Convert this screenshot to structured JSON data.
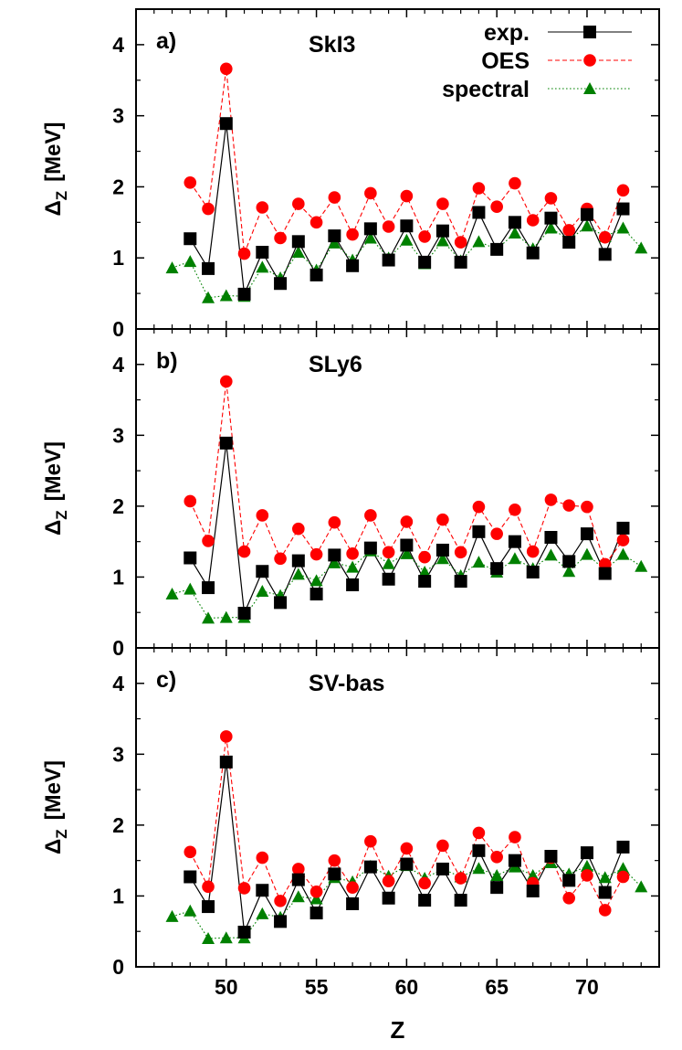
{
  "figure": {
    "xlabel": "Z",
    "ylabel_main": "Δ",
    "ylabel_sub": "Z",
    "ylabel_unit": "[MeV]",
    "legend": {
      "exp": "exp.",
      "oes": "OES",
      "spectral": "spectral"
    }
  },
  "colors": {
    "exp": "#000000",
    "oes": "#ff0000",
    "spectral": "#008000"
  },
  "chart_data": [
    {
      "type": "line",
      "panel_label": "a)",
      "title": "SkI3",
      "xlabel": "Z",
      "ylabel": "ΔZ [MeV]",
      "xlim": [
        45,
        74
      ],
      "ylim": [
        0,
        4.5
      ],
      "xticks": [
        50,
        55,
        60,
        65,
        70
      ],
      "yticks": [
        0,
        1,
        2,
        3,
        4
      ],
      "legend_position": "top-right",
      "series": [
        {
          "name": "exp.",
          "marker": "square",
          "style": "solid",
          "x": [
            48,
            49,
            50,
            51,
            52,
            53,
            54,
            55,
            56,
            57,
            58,
            59,
            60,
            61,
            62,
            63,
            64,
            65,
            66,
            67,
            68,
            69,
            70,
            71,
            72
          ],
          "y": [
            1.27,
            0.85,
            2.89,
            0.49,
            1.08,
            0.64,
            1.23,
            0.76,
            1.31,
            0.89,
            1.41,
            0.97,
            1.45,
            0.94,
            1.38,
            0.94,
            1.64,
            1.12,
            1.5,
            1.07,
            1.56,
            1.22,
            1.61,
            1.05,
            1.69
          ]
        },
        {
          "name": "OES",
          "marker": "circle",
          "style": "dashed",
          "x": [
            48,
            49,
            50,
            51,
            52,
            53,
            54,
            55,
            56,
            57,
            58,
            59,
            60,
            61,
            62,
            63,
            64,
            65,
            66,
            67,
            68,
            69,
            70,
            71,
            72
          ],
          "y": [
            2.06,
            1.69,
            3.66,
            1.06,
            1.71,
            1.28,
            1.76,
            1.5,
            1.85,
            1.33,
            1.91,
            1.44,
            1.87,
            1.3,
            1.76,
            1.22,
            1.98,
            1.72,
            2.05,
            1.53,
            1.84,
            1.39,
            1.69,
            1.29,
            1.95
          ]
        },
        {
          "name": "spectral",
          "marker": "triangle",
          "style": "dotted",
          "x": [
            47,
            48,
            49,
            50,
            51,
            52,
            53,
            54,
            55,
            56,
            57,
            58,
            59,
            60,
            61,
            62,
            63,
            64,
            65,
            66,
            67,
            68,
            69,
            70,
            71,
            72,
            73
          ],
          "y": [
            0.86,
            0.95,
            0.44,
            0.47,
            0.46,
            0.87,
            0.72,
            1.08,
            0.83,
            1.21,
            0.97,
            1.28,
            1.0,
            1.25,
            0.92,
            1.24,
            0.96,
            1.23,
            1.12,
            1.35,
            1.13,
            1.42,
            1.25,
            1.45,
            1.3,
            1.42,
            1.14
          ]
        }
      ]
    },
    {
      "type": "line",
      "panel_label": "b)",
      "title": "SLy6",
      "xlabel": "Z",
      "ylabel": "ΔZ [MeV]",
      "xlim": [
        45,
        74
      ],
      "ylim": [
        0,
        4.5
      ],
      "xticks": [
        50,
        55,
        60,
        65,
        70
      ],
      "yticks": [
        0,
        1,
        2,
        3,
        4
      ],
      "series": [
        {
          "name": "exp.",
          "marker": "square",
          "style": "solid",
          "x": [
            48,
            49,
            50,
            51,
            52,
            53,
            54,
            55,
            56,
            57,
            58,
            59,
            60,
            61,
            62,
            63,
            64,
            65,
            66,
            67,
            68,
            69,
            70,
            71,
            72
          ],
          "y": [
            1.27,
            0.85,
            2.89,
            0.49,
            1.08,
            0.64,
            1.23,
            0.76,
            1.31,
            0.89,
            1.41,
            0.97,
            1.45,
            0.94,
            1.38,
            0.94,
            1.64,
            1.12,
            1.5,
            1.07,
            1.56,
            1.22,
            1.61,
            1.05,
            1.69
          ]
        },
        {
          "name": "OES",
          "marker": "circle",
          "style": "dashed",
          "x": [
            48,
            49,
            50,
            51,
            52,
            53,
            54,
            55,
            56,
            57,
            58,
            59,
            60,
            61,
            62,
            63,
            64,
            65,
            66,
            67,
            68,
            69,
            70,
            71,
            72
          ],
          "y": [
            2.07,
            1.51,
            3.76,
            1.36,
            1.87,
            1.26,
            1.68,
            1.32,
            1.77,
            1.33,
            1.87,
            1.35,
            1.78,
            1.28,
            1.81,
            1.35,
            1.99,
            1.61,
            1.95,
            1.36,
            2.09,
            2.01,
            1.99,
            1.18,
            1.52
          ]
        },
        {
          "name": "spectral",
          "marker": "triangle",
          "style": "dotted",
          "x": [
            47,
            48,
            49,
            50,
            51,
            52,
            53,
            54,
            55,
            56,
            57,
            58,
            59,
            60,
            61,
            62,
            63,
            64,
            65,
            66,
            67,
            68,
            69,
            70,
            71,
            72,
            73
          ],
          "y": [
            0.76,
            0.83,
            0.42,
            0.43,
            0.43,
            0.8,
            0.74,
            1.04,
            0.95,
            1.2,
            1.14,
            1.37,
            1.19,
            1.33,
            1.07,
            1.26,
            1.02,
            1.21,
            1.07,
            1.26,
            1.12,
            1.31,
            1.08,
            1.32,
            1.1,
            1.32,
            1.15
          ]
        }
      ]
    },
    {
      "type": "line",
      "panel_label": "c)",
      "title": "SV-bas",
      "xlabel": "Z",
      "ylabel": "ΔZ [MeV]",
      "xlim": [
        45,
        74
      ],
      "ylim": [
        0,
        4.5
      ],
      "xticks": [
        50,
        55,
        60,
        65,
        70
      ],
      "yticks": [
        0,
        1,
        2,
        3,
        4
      ],
      "series": [
        {
          "name": "exp.",
          "marker": "square",
          "style": "solid",
          "x": [
            48,
            49,
            50,
            51,
            52,
            53,
            54,
            55,
            56,
            57,
            58,
            59,
            60,
            61,
            62,
            63,
            64,
            65,
            66,
            67,
            68,
            69,
            70,
            71,
            72
          ],
          "y": [
            1.27,
            0.85,
            2.89,
            0.49,
            1.08,
            0.64,
            1.23,
            0.76,
            1.31,
            0.89,
            1.41,
            0.97,
            1.45,
            0.94,
            1.38,
            0.94,
            1.64,
            1.12,
            1.5,
            1.07,
            1.56,
            1.22,
            1.61,
            1.05,
            1.69
          ]
        },
        {
          "name": "OES",
          "marker": "circle",
          "style": "dashed",
          "x": [
            48,
            49,
            50,
            51,
            52,
            53,
            54,
            55,
            56,
            57,
            58,
            59,
            60,
            61,
            62,
            63,
            64,
            65,
            66,
            67,
            68,
            69,
            70,
            71,
            72
          ],
          "y": [
            1.62,
            1.13,
            3.25,
            1.11,
            1.54,
            0.93,
            1.38,
            1.06,
            1.5,
            1.12,
            1.77,
            1.21,
            1.67,
            1.18,
            1.71,
            1.25,
            1.89,
            1.55,
            1.83,
            1.18,
            1.54,
            0.97,
            1.29,
            0.8,
            1.27
          ]
        },
        {
          "name": "spectral",
          "marker": "triangle",
          "style": "dotted",
          "x": [
            47,
            48,
            49,
            50,
            51,
            52,
            53,
            54,
            55,
            56,
            57,
            58,
            59,
            60,
            61,
            62,
            63,
            64,
            65,
            66,
            67,
            68,
            69,
            70,
            71,
            72,
            73
          ],
          "y": [
            0.71,
            0.79,
            0.4,
            0.41,
            0.41,
            0.75,
            0.7,
            0.99,
            0.96,
            1.26,
            1.2,
            1.42,
            1.28,
            1.43,
            1.25,
            1.38,
            1.27,
            1.39,
            1.29,
            1.41,
            1.29,
            1.47,
            1.31,
            1.42,
            1.26,
            1.39,
            1.13
          ]
        }
      ]
    }
  ]
}
